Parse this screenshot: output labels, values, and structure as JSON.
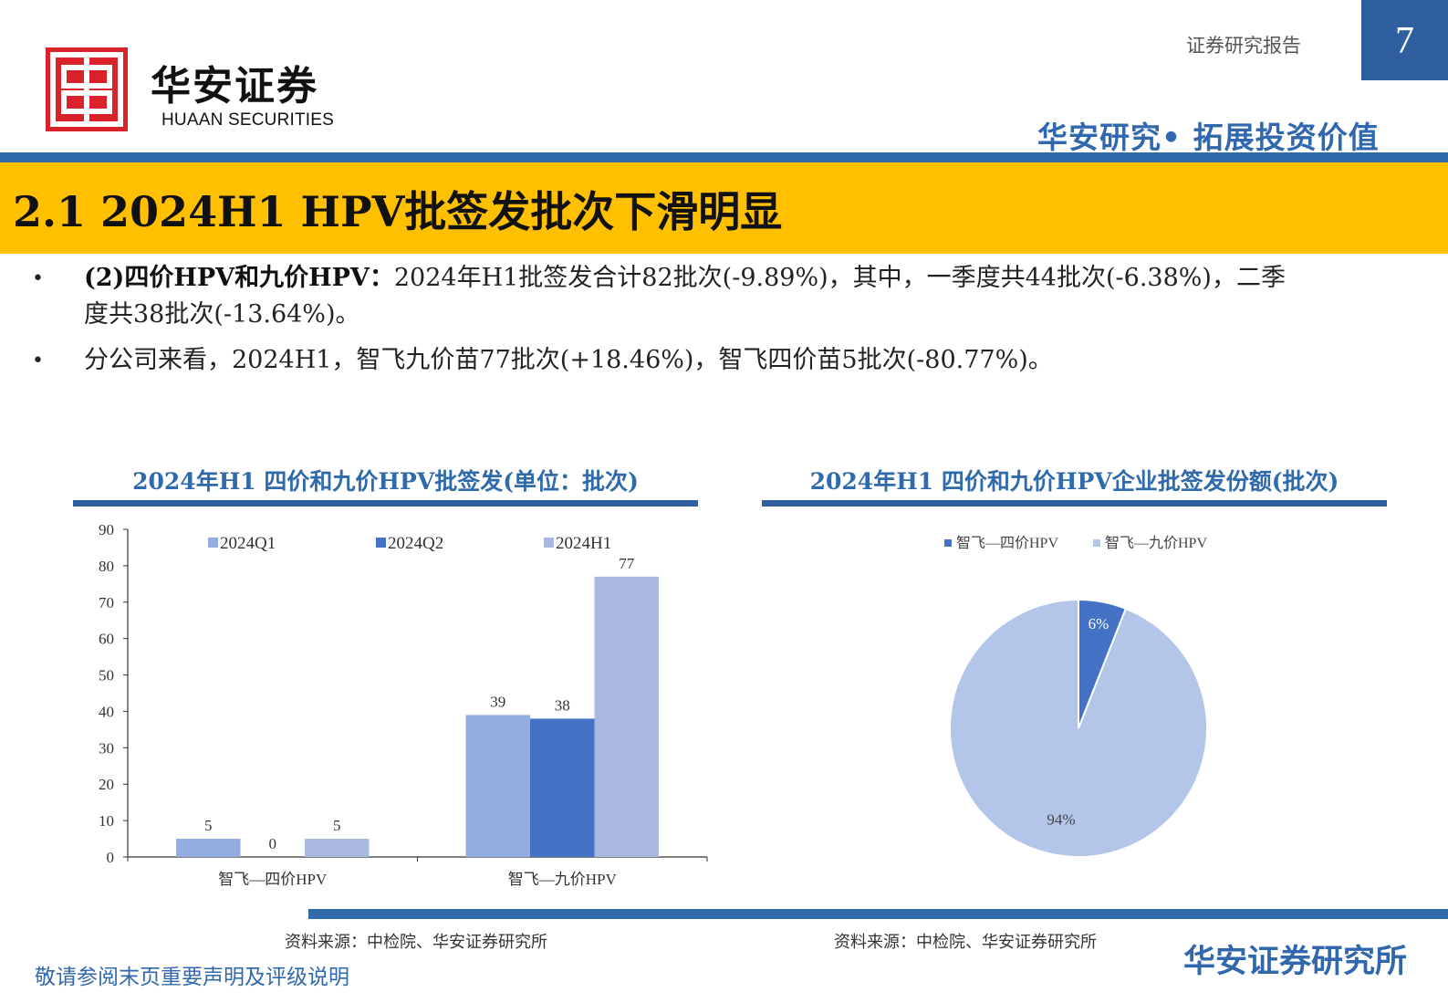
{
  "header": {
    "logo_cn": "华安证券",
    "logo_en": "HUAAN SECURITIES",
    "report_type": "证券研究报告",
    "page_number": "7",
    "slogan": "华安研究• 拓展投资价值"
  },
  "title": "2.1 2024H1 HPV批签发批次下滑明显",
  "bullets": [
    {
      "lead": "(2)四价HPV和九价HPV：",
      "text_line1": "2024年H1批签发合计82批次(-9.89%)，其中，一季度共44批次(-6.38%)，二季",
      "text_line2": "度共38批次(-13.64%)。"
    },
    {
      "text": "分公司来看，2024H1，智飞九价苗77批次(+18.46%)，智飞四价苗5批次(-80.77%)。"
    }
  ],
  "colors": {
    "brand_blue": "#2f6aab",
    "title_yellow": "#ffc000",
    "q1": "#93ade2",
    "q2": "#4472c4",
    "h1": "#a9b8e0",
    "pie_4": "#4472c4",
    "pie_9": "#b4c5ea"
  },
  "chart_data": [
    {
      "type": "bar",
      "title": "2024年H1 四价和九价HPV批签发(单位：批次)",
      "categories": [
        "智飞—四价HPV",
        "智飞—九价HPV"
      ],
      "series": [
        {
          "name": "2024Q1",
          "values": [
            5,
            39
          ]
        },
        {
          "name": "2024Q2",
          "values": [
            0,
            38
          ]
        },
        {
          "name": "2024H1",
          "values": [
            5,
            77
          ]
        }
      ],
      "ylim": [
        0,
        90
      ],
      "yticks": [
        0,
        10,
        20,
        30,
        40,
        50,
        60,
        70,
        80,
        90
      ],
      "legend": "top",
      "grid": false,
      "source": "资料来源：中检院、华安证券研究所"
    },
    {
      "type": "pie",
      "title": "2024年H1 四价和九价HPV企业批签发份额(批次)",
      "labels": [
        "智飞—四价HPV",
        "智飞—九价HPV"
      ],
      "values": [
        6,
        94
      ],
      "value_labels": [
        "6%",
        "94%"
      ],
      "legend": "top",
      "source": "资料来源：中检院、华安证券研究所"
    }
  ],
  "footer": {
    "disclaimer": "敬请参阅末页重要声明及评级说明",
    "brand": "华安证券研究所"
  }
}
